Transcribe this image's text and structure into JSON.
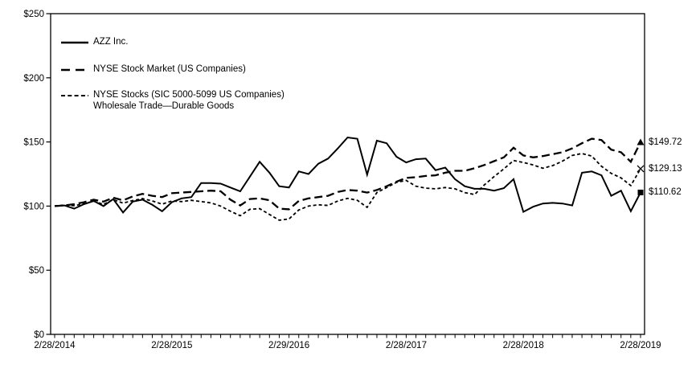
{
  "chart_data": {
    "type": "line",
    "title": "",
    "x_axis": {
      "tick_labels": [
        "2/28/2014",
        "2/28/2015",
        "2/29/2016",
        "2/28/2017",
        "2/28/2018",
        "2/28/2019"
      ],
      "minor_ticks": "monthly",
      "points_per_series": 61
    },
    "y_axis": {
      "tick_labels": [
        "$0",
        "$50",
        "$100",
        "$150",
        "$200",
        "$250"
      ],
      "tick_values": [
        0,
        50,
        100,
        150,
        200,
        250
      ],
      "ylim": [
        0,
        250
      ]
    },
    "grid": false,
    "legend_position": "top-left-inside",
    "series": [
      {
        "name": "AZZ Inc.",
        "style": "solid",
        "marker": "square",
        "end_label": "$110.62",
        "final_value": 110.62,
        "values": [
          100,
          100.5,
          98,
          101.5,
          104,
          100,
          105.5,
          95,
          103.5,
          105,
          101,
          96,
          103,
          106,
          107,
          118,
          118,
          117.5,
          114.5,
          111.5,
          123,
          134.5,
          126,
          115.5,
          114.5,
          127,
          125,
          133,
          137,
          145,
          153.5,
          152.5,
          124.5,
          151,
          149,
          138.5,
          134,
          136.5,
          137,
          128,
          130,
          121,
          115.5,
          113.5,
          113.5,
          112,
          114,
          121,
          95.5,
          99.5,
          102,
          102.5,
          102,
          100.5,
          126,
          127,
          124,
          108,
          112,
          96,
          110.62
        ]
      },
      {
        "name": "NYSE Stock Market (US Companies)",
        "style": "long-dash",
        "marker": "triangle",
        "end_label": "$149.72",
        "final_value": 149.72,
        "values": [
          100,
          100.5,
          101.5,
          103,
          105,
          103.5,
          106.5,
          104.5,
          107.5,
          109.5,
          108,
          107,
          110,
          110.5,
          111,
          111.5,
          112,
          111.5,
          105,
          100.5,
          105.5,
          106,
          104.5,
          98,
          97.5,
          104,
          106,
          107,
          108,
          111,
          112.5,
          112,
          110.5,
          112.5,
          115.5,
          119,
          122,
          122.5,
          123.5,
          124,
          126,
          127.5,
          127.5,
          129.5,
          132,
          135,
          138,
          145.5,
          139.5,
          138,
          139,
          140.5,
          142,
          145,
          149,
          152.5,
          151.5,
          144,
          142,
          134.5,
          149.72
        ]
      },
      {
        "name": "NYSE Stocks (SIC 5000-5099 US Companies) Wholesale Trade—Durable Goods",
        "style": "short-dash",
        "marker": "x",
        "end_label": "$129.13",
        "final_value": 129.13,
        "values": [
          100,
          100.8,
          100.3,
          101.8,
          103.8,
          101.3,
          105,
          102.3,
          104.3,
          105.8,
          104,
          101.5,
          104,
          103.5,
          104.5,
          103.5,
          102.5,
          100,
          96,
          92.5,
          97.5,
          98,
          93.5,
          89,
          90,
          97,
          100,
          101,
          100.5,
          104,
          106,
          104.5,
          99,
          110.5,
          114.5,
          118.5,
          120,
          115.5,
          114,
          113.5,
          114.5,
          113.5,
          110.5,
          109,
          116.5,
          123,
          129,
          135.5,
          134,
          132,
          129.5,
          131.5,
          135,
          139.5,
          141,
          139,
          131,
          125.5,
          122,
          116,
          129.13
        ]
      }
    ],
    "legend": [
      {
        "line1": "AZZ Inc.",
        "line2": ""
      },
      {
        "line1": "NYSE Stock Market (US Companies)",
        "line2": ""
      },
      {
        "line1": "NYSE Stocks (SIC 5000-5099 US Companies)",
        "line2": "Wholesale Trade—Durable Goods"
      }
    ]
  },
  "colors": {
    "line": "#000000",
    "background": "#ffffff",
    "text": "#000000"
  }
}
